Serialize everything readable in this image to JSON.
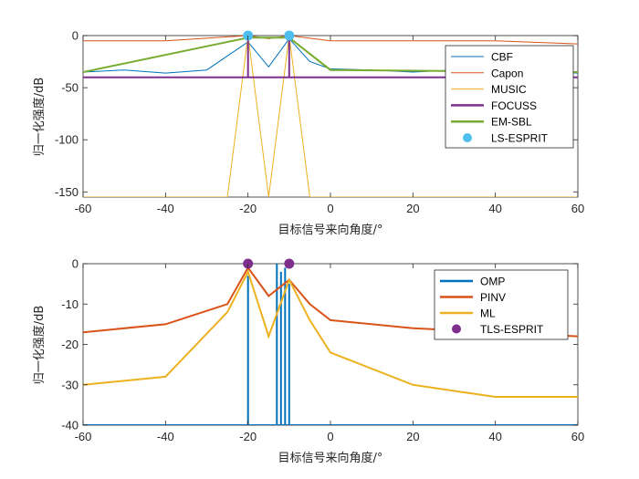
{
  "chart_data": [
    {
      "type": "line",
      "xlabel": "目标信号来向角度/°",
      "ylabel": "归一化强度/dB",
      "xlim": [
        -60,
        60
      ],
      "ylim": [
        -155,
        0
      ],
      "xticks": [
        "-60",
        "-40",
        "-20",
        "0",
        "20",
        "40",
        "60"
      ],
      "yticks": [
        "0",
        "-50",
        "-100",
        "-150"
      ],
      "xtick_values": [
        -60,
        -40,
        -20,
        0,
        20,
        40,
        60
      ],
      "ytick_values": [
        0,
        -50,
        -100,
        -150
      ],
      "legend_position": "top-right",
      "series": [
        {
          "name": "CBF",
          "color": "#0072BD",
          "kind": "line",
          "desc": "sidelobe pattern around -30 to -40 dB with broad main lobes near -20 and -10",
          "x": [
            -60,
            -50,
            -40,
            -30,
            -20,
            -15,
            -10,
            -5,
            0,
            10,
            20,
            30,
            40,
            50,
            60
          ],
          "y": [
            -35,
            -33,
            -36,
            -33,
            -6,
            -30,
            -3,
            -25,
            -32,
            -33,
            -35,
            -33,
            -36,
            -34,
            -36
          ]
        },
        {
          "name": "Capon",
          "color": "#D95319",
          "kind": "line",
          "x": [
            -60,
            -40,
            -20,
            -15,
            -10,
            0,
            20,
            40,
            60
          ],
          "y": [
            -5,
            -5,
            0,
            -3,
            0,
            -5,
            -5,
            -5,
            -8
          ]
        },
        {
          "name": "MUSIC",
          "color": "#EDB120",
          "kind": "line",
          "x": [
            -60,
            -25,
            -20,
            -15,
            -10,
            -5,
            0,
            60
          ],
          "y": [
            -155,
            -155,
            0,
            -155,
            0,
            -155,
            -155,
            -155
          ]
        },
        {
          "name": "FOCUSS",
          "color": "#7E2F8E",
          "kind": "line",
          "x": [
            -60,
            -20,
            -20,
            -20,
            -10,
            -10,
            -10,
            60
          ],
          "y": [
            -40,
            -40,
            0,
            -40,
            -40,
            0,
            -40,
            -40
          ]
        },
        {
          "name": "EM-SBL",
          "color": "#77AC30",
          "kind": "line",
          "x": [
            -60,
            -20,
            -10,
            0,
            60
          ],
          "y": [
            -35,
            -2,
            -2,
            -33,
            -35
          ]
        },
        {
          "name": "LS-ESPRIT",
          "color": "#4DBEEE",
          "kind": "marker",
          "x": [
            -20,
            -10
          ],
          "y": [
            0,
            0
          ]
        }
      ]
    },
    {
      "type": "line",
      "xlabel": "目标信号来向角度/°",
      "ylabel": "归一化强度/dB",
      "xlim": [
        -60,
        60
      ],
      "ylim": [
        -40,
        0
      ],
      "xticks": [
        "-60",
        "-40",
        "-20",
        "0",
        "20",
        "40",
        "60"
      ],
      "yticks": [
        "0",
        "-10",
        "-20",
        "-30",
        "-40"
      ],
      "xtick_values": [
        -60,
        -40,
        -20,
        0,
        20,
        40,
        60
      ],
      "ytick_values": [
        0,
        -10,
        -20,
        -30,
        -40
      ],
      "legend_position": "top-right",
      "series": [
        {
          "name": "OMP",
          "color": "#0072BD",
          "kind": "stem",
          "x": [
            -60,
            -20,
            -20,
            -20,
            -13,
            -13,
            -13,
            -12,
            -12,
            -12,
            -11,
            -11,
            -11,
            -10,
            -10,
            -10,
            60
          ],
          "y": [
            -40,
            -40,
            -3,
            -40,
            -40,
            0,
            -40,
            -40,
            -2,
            -40,
            -40,
            -1,
            -40,
            -40,
            -5,
            -40,
            -40
          ]
        },
        {
          "name": "PINV",
          "color": "#D95319",
          "kind": "line",
          "x": [
            -60,
            -40,
            -25,
            -20,
            -15,
            -10,
            -5,
            0,
            20,
            40,
            60
          ],
          "y": [
            -17,
            -15,
            -10,
            -1,
            -8,
            -4,
            -10,
            -14,
            -16,
            -17,
            -18
          ]
        },
        {
          "name": "ML",
          "color": "#EDB120",
          "kind": "line",
          "x": [
            -60,
            -40,
            -25,
            -20,
            -15,
            -10,
            -5,
            0,
            20,
            40,
            60
          ],
          "y": [
            -30,
            -28,
            -12,
            -2,
            -18,
            -4,
            -14,
            -22,
            -30,
            -33,
            -33
          ]
        },
        {
          "name": "TLS-ESPRIT",
          "color": "#7E2F8E",
          "kind": "marker",
          "x": [
            -20,
            -10
          ],
          "y": [
            0,
            0
          ]
        }
      ]
    }
  ]
}
